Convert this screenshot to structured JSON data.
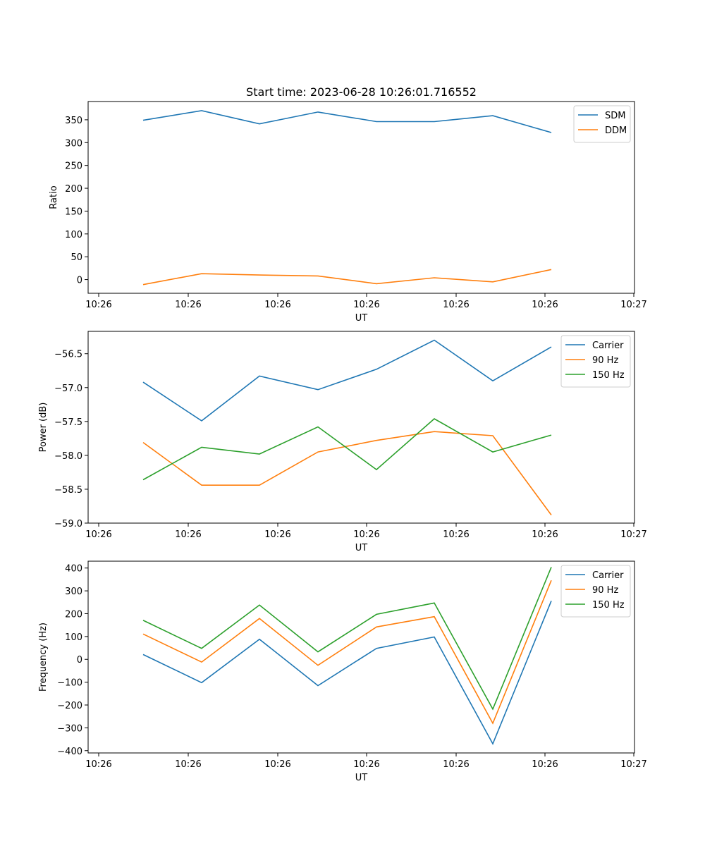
{
  "chart_data": [
    {
      "type": "line",
      "title": "Start time: 2023-06-28 10:26:01.716552",
      "xlabel": "UT",
      "ylabel": "Ratio",
      "x_tick_labels": [
        "10:26",
        "10:26",
        "10:26",
        "10:26",
        "10:26",
        "10:26",
        "10:27"
      ],
      "y_ticks": [
        0,
        50,
        100,
        150,
        200,
        250,
        300,
        350
      ],
      "y_tick_labels": [
        "0",
        "50",
        "100",
        "150",
        "200",
        "250",
        "300",
        "350"
      ],
      "ylim": [
        -30,
        390
      ],
      "legend_location": "top-right",
      "grid": false,
      "series": [
        {
          "name": "SDM",
          "color": "#1f77b4",
          "values": [
            349,
            370,
            341,
            367,
            346,
            346,
            359,
            322
          ]
        },
        {
          "name": "DDM",
          "color": "#ff7f0e",
          "values": [
            -11,
            13,
            10,
            8,
            -9,
            4,
            -5,
            22
          ]
        }
      ]
    },
    {
      "type": "line",
      "title": "",
      "xlabel": "UT",
      "ylabel": "Power (dB)",
      "x_tick_labels": [
        "10:26",
        "10:26",
        "10:26",
        "10:26",
        "10:26",
        "10:26",
        "10:27"
      ],
      "y_ticks": [
        -59.0,
        -58.5,
        -58.0,
        -57.5,
        -57.0,
        -56.5
      ],
      "y_tick_labels": [
        "−59.0",
        "−58.5",
        "−58.0",
        "−57.5",
        "−57.0",
        "−56.5"
      ],
      "ylim": [
        -59.0,
        -56.17
      ],
      "legend_location": "top-right",
      "grid": false,
      "series": [
        {
          "name": "Carrier",
          "color": "#1f77b4",
          "values": [
            -56.92,
            -57.49,
            -56.83,
            -57.03,
            -56.73,
            -56.3,
            -56.9,
            -56.4
          ]
        },
        {
          "name": "90 Hz",
          "color": "#ff7f0e",
          "values": [
            -57.81,
            -58.44,
            -58.44,
            -57.95,
            -57.78,
            -57.65,
            -57.71,
            -58.88
          ]
        },
        {
          "name": "150 Hz",
          "color": "#2ca02c",
          "values": [
            -58.36,
            -57.88,
            -57.98,
            -57.58,
            -58.21,
            -57.46,
            -57.95,
            -57.7
          ]
        }
      ]
    },
    {
      "type": "line",
      "title": "",
      "xlabel": "UT",
      "ylabel": "Frequency (Hz)",
      "x_tick_labels": [
        "10:26",
        "10:26",
        "10:26",
        "10:26",
        "10:26",
        "10:26",
        "10:27"
      ],
      "y_ticks": [
        -400,
        -300,
        -200,
        -100,
        0,
        100,
        200,
        300,
        400
      ],
      "y_tick_labels": [
        "−400",
        "−300",
        "−200",
        "−100",
        "0",
        "100",
        "200",
        "300",
        "400"
      ],
      "ylim": [
        -410,
        430
      ],
      "legend_location": "top-right",
      "grid": false,
      "series": [
        {
          "name": "Carrier",
          "color": "#1f77b4",
          "values": [
            21,
            -102,
            88,
            -115,
            48,
            98,
            -370,
            256
          ]
        },
        {
          "name": "90 Hz",
          "color": "#ff7f0e",
          "values": [
            111,
            -12,
            179,
            -26,
            142,
            187,
            -280,
            346
          ]
        },
        {
          "name": "150 Hz",
          "color": "#2ca02c",
          "values": [
            171,
            48,
            238,
            33,
            197,
            247,
            -218,
            404
          ]
        }
      ]
    }
  ]
}
